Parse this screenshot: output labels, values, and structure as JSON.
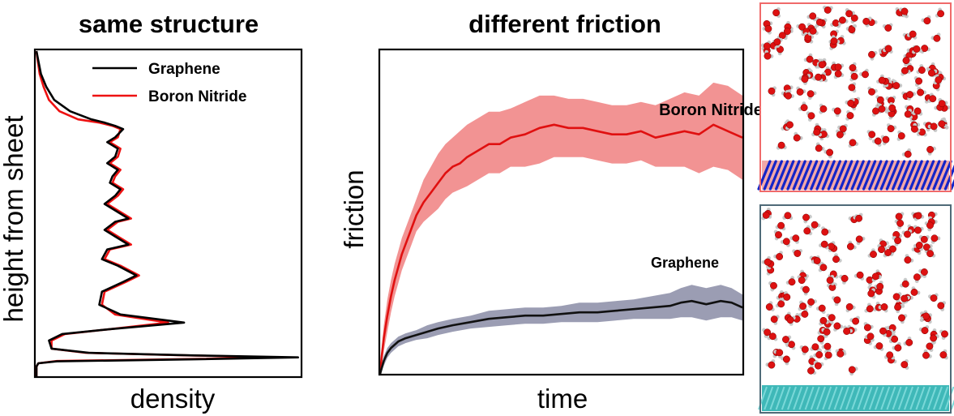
{
  "chart_data": [
    {
      "type": "line",
      "title": "same structure",
      "xlabel": "density",
      "ylabel": "height from sheet",
      "orientation": "vertical-profile",
      "xlim": [
        0,
        1.0
      ],
      "ylim": [
        0,
        1.0
      ],
      "legend_position": "top-right",
      "series": [
        {
          "name": "Graphene",
          "color": "#000000",
          "points": [
            [
              0.003,
              0.0
            ],
            [
              0.003,
              0.03
            ],
            [
              0.01,
              0.04
            ],
            [
              0.08,
              0.046
            ],
            [
              0.6,
              0.052
            ],
            [
              0.99,
              0.058
            ],
            [
              0.6,
              0.064
            ],
            [
              0.2,
              0.072
            ],
            [
              0.06,
              0.085
            ],
            [
              0.05,
              0.11
            ],
            [
              0.1,
              0.13
            ],
            [
              0.28,
              0.145
            ],
            [
              0.56,
              0.165
            ],
            [
              0.32,
              0.19
            ],
            [
              0.24,
              0.22
            ],
            [
              0.25,
              0.26
            ],
            [
              0.33,
              0.29
            ],
            [
              0.38,
              0.31
            ],
            [
              0.31,
              0.34
            ],
            [
              0.25,
              0.36
            ],
            [
              0.27,
              0.39
            ],
            [
              0.35,
              0.405
            ],
            [
              0.3,
              0.43
            ],
            [
              0.26,
              0.45
            ],
            [
              0.3,
              0.475
            ],
            [
              0.35,
              0.485
            ],
            [
              0.3,
              0.51
            ],
            [
              0.26,
              0.53
            ],
            [
              0.3,
              0.555
            ],
            [
              0.32,
              0.575
            ],
            [
              0.28,
              0.595
            ],
            [
              0.29,
              0.615
            ],
            [
              0.31,
              0.635
            ],
            [
              0.27,
              0.655
            ],
            [
              0.3,
              0.675
            ],
            [
              0.31,
              0.7
            ],
            [
              0.27,
              0.72
            ],
            [
              0.3,
              0.735
            ],
            [
              0.33,
              0.76
            ],
            [
              0.3,
              0.77
            ],
            [
              0.26,
              0.78
            ],
            [
              0.21,
              0.79
            ],
            [
              0.13,
              0.815
            ],
            [
              0.07,
              0.85
            ],
            [
              0.04,
              0.89
            ],
            [
              0.02,
              0.93
            ],
            [
              0.01,
              0.97
            ],
            [
              0.003,
              1.0
            ]
          ]
        },
        {
          "name": "Boron Nitride",
          "color": "#ee1111",
          "points": [
            [
              0.003,
              0.0
            ],
            [
              0.003,
              0.03
            ],
            [
              0.01,
              0.04
            ],
            [
              0.08,
              0.047
            ],
            [
              0.6,
              0.053
            ],
            [
              0.92,
              0.058
            ],
            [
              0.58,
              0.064
            ],
            [
              0.19,
              0.072
            ],
            [
              0.06,
              0.085
            ],
            [
              0.06,
              0.11
            ],
            [
              0.11,
              0.13
            ],
            [
              0.28,
              0.145
            ],
            [
              0.5,
              0.165
            ],
            [
              0.3,
              0.19
            ],
            [
              0.25,
              0.22
            ],
            [
              0.26,
              0.26
            ],
            [
              0.34,
              0.29
            ],
            [
              0.39,
              0.31
            ],
            [
              0.32,
              0.34
            ],
            [
              0.26,
              0.36
            ],
            [
              0.28,
              0.39
            ],
            [
              0.36,
              0.405
            ],
            [
              0.31,
              0.43
            ],
            [
              0.27,
              0.45
            ],
            [
              0.31,
              0.475
            ],
            [
              0.36,
              0.485
            ],
            [
              0.31,
              0.51
            ],
            [
              0.27,
              0.53
            ],
            [
              0.31,
              0.555
            ],
            [
              0.33,
              0.575
            ],
            [
              0.29,
              0.595
            ],
            [
              0.3,
              0.615
            ],
            [
              0.32,
              0.635
            ],
            [
              0.28,
              0.655
            ],
            [
              0.31,
              0.675
            ],
            [
              0.32,
              0.7
            ],
            [
              0.28,
              0.72
            ],
            [
              0.31,
              0.735
            ],
            [
              0.32,
              0.76
            ],
            [
              0.29,
              0.77
            ],
            [
              0.24,
              0.78
            ],
            [
              0.16,
              0.79
            ],
            [
              0.09,
              0.815
            ],
            [
              0.05,
              0.85
            ],
            [
              0.03,
              0.89
            ],
            [
              0.015,
              0.93
            ],
            [
              0.008,
              0.97
            ],
            [
              0.003,
              1.0
            ]
          ]
        }
      ]
    },
    {
      "type": "area",
      "title": "different friction",
      "xlabel": "time",
      "ylabel": "friction",
      "xlim": [
        0,
        1.0
      ],
      "ylim": [
        0,
        1.0
      ],
      "series": [
        {
          "name": "Boron Nitride",
          "color": "#e01010",
          "band_color": "#f08080",
          "x": [
            0.0,
            0.005,
            0.01,
            0.02,
            0.03,
            0.04,
            0.05,
            0.06,
            0.08,
            0.1,
            0.12,
            0.14,
            0.16,
            0.18,
            0.2,
            0.22,
            0.24,
            0.27,
            0.3,
            0.33,
            0.36,
            0.4,
            0.44,
            0.48,
            0.52,
            0.56,
            0.6,
            0.64,
            0.68,
            0.72,
            0.76,
            0.8,
            0.84,
            0.88,
            0.92,
            0.96,
            1.0
          ],
          "mid": [
            0.0,
            0.06,
            0.11,
            0.18,
            0.24,
            0.29,
            0.33,
            0.37,
            0.43,
            0.49,
            0.53,
            0.56,
            0.59,
            0.62,
            0.64,
            0.65,
            0.67,
            0.69,
            0.71,
            0.71,
            0.73,
            0.74,
            0.76,
            0.77,
            0.76,
            0.76,
            0.75,
            0.74,
            0.74,
            0.75,
            0.73,
            0.74,
            0.75,
            0.74,
            0.77,
            0.75,
            0.73
          ],
          "upper": [
            0.0,
            0.09,
            0.15,
            0.23,
            0.29,
            0.34,
            0.38,
            0.42,
            0.48,
            0.54,
            0.6,
            0.64,
            0.68,
            0.71,
            0.73,
            0.75,
            0.77,
            0.79,
            0.81,
            0.81,
            0.82,
            0.84,
            0.86,
            0.86,
            0.85,
            0.85,
            0.84,
            0.83,
            0.83,
            0.84,
            0.83,
            0.85,
            0.87,
            0.86,
            0.9,
            0.89,
            0.86
          ],
          "lower": [
            0.0,
            0.03,
            0.07,
            0.13,
            0.19,
            0.24,
            0.28,
            0.32,
            0.38,
            0.44,
            0.47,
            0.49,
            0.51,
            0.54,
            0.56,
            0.57,
            0.58,
            0.6,
            0.62,
            0.62,
            0.64,
            0.64,
            0.65,
            0.67,
            0.67,
            0.67,
            0.66,
            0.65,
            0.65,
            0.66,
            0.64,
            0.64,
            0.64,
            0.62,
            0.64,
            0.63,
            0.6
          ]
        },
        {
          "name": "Graphene",
          "color": "#111111",
          "band_color": "#8a8ca6",
          "x": [
            0.0,
            0.005,
            0.01,
            0.02,
            0.03,
            0.05,
            0.07,
            0.1,
            0.13,
            0.16,
            0.2,
            0.25,
            0.3,
            0.35,
            0.4,
            0.45,
            0.5,
            0.55,
            0.6,
            0.65,
            0.7,
            0.75,
            0.8,
            0.83,
            0.86,
            0.9,
            0.94,
            0.97,
            1.0
          ],
          "mid": [
            0.0,
            0.02,
            0.04,
            0.065,
            0.08,
            0.1,
            0.11,
            0.12,
            0.13,
            0.14,
            0.15,
            0.16,
            0.17,
            0.175,
            0.18,
            0.18,
            0.185,
            0.19,
            0.19,
            0.195,
            0.2,
            0.205,
            0.21,
            0.22,
            0.225,
            0.215,
            0.225,
            0.22,
            0.205
          ],
          "upper": [
            0.0,
            0.03,
            0.055,
            0.08,
            0.095,
            0.115,
            0.125,
            0.135,
            0.15,
            0.16,
            0.17,
            0.18,
            0.195,
            0.2,
            0.205,
            0.205,
            0.21,
            0.22,
            0.22,
            0.225,
            0.23,
            0.24,
            0.25,
            0.265,
            0.275,
            0.265,
            0.275,
            0.265,
            0.245
          ],
          "lower": [
            0.0,
            0.01,
            0.025,
            0.05,
            0.065,
            0.085,
            0.095,
            0.105,
            0.11,
            0.12,
            0.13,
            0.14,
            0.145,
            0.15,
            0.155,
            0.155,
            0.16,
            0.16,
            0.16,
            0.165,
            0.17,
            0.17,
            0.17,
            0.175,
            0.175,
            0.165,
            0.175,
            0.175,
            0.165
          ]
        }
      ],
      "annotations": [
        {
          "text": "Boron Nitride",
          "x": 0.91,
          "y": 0.86
        },
        {
          "text": "Graphene",
          "x": 0.86,
          "y": 0.3
        }
      ]
    }
  ],
  "snapshots": [
    {
      "label": "boron-nitride-snapshot",
      "border_color": "#f06a6a",
      "substrate": "boron-nitride",
      "substrate_colors": [
        "#f2a7a7",
        "#1424c8"
      ]
    },
    {
      "label": "graphene-snapshot",
      "border_color": "#4f6a78",
      "substrate": "graphene",
      "substrate_colors": [
        "#3fb8b8",
        "#7ad8d8"
      ]
    }
  ],
  "colors": {
    "water_oxygen": "#dd1111",
    "water_hydrogen": "#c8c8c8"
  }
}
